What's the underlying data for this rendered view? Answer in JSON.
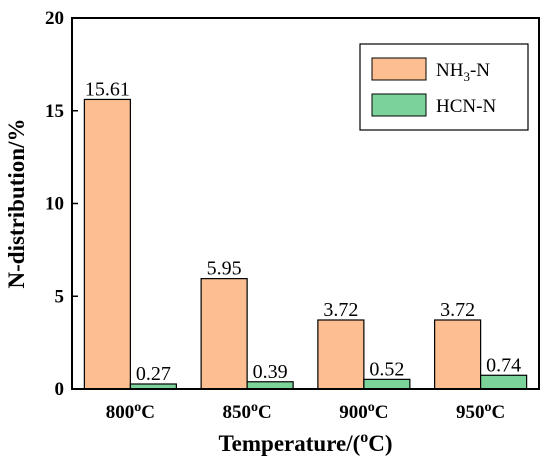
{
  "chart_data": {
    "type": "bar",
    "categories": [
      "800°C",
      "850°C",
      "900°C",
      "950°C"
    ],
    "series": [
      {
        "name": "NH3-N",
        "values": [
          15.61,
          5.95,
          3.72,
          3.72
        ],
        "color": "#FDBF91"
      },
      {
        "name": "HCN-N",
        "values": [
          0.27,
          0.39,
          0.52,
          0.74
        ],
        "color": "#7CD39A"
      }
    ],
    "data_labels": {
      "NH3-N": [
        "15.61",
        "5.95",
        "3.72",
        "3.72"
      ],
      "HCN-N": [
        "0.27",
        "0.39",
        "0.52",
        "0.74"
      ]
    },
    "xlabel": "Temperature/(°C)",
    "ylabel": "N-distribution/%",
    "ylim": [
      0,
      20
    ],
    "yticks": [
      "0",
      "5",
      "10",
      "15",
      "20"
    ],
    "grid": false,
    "legend": "top-right"
  }
}
